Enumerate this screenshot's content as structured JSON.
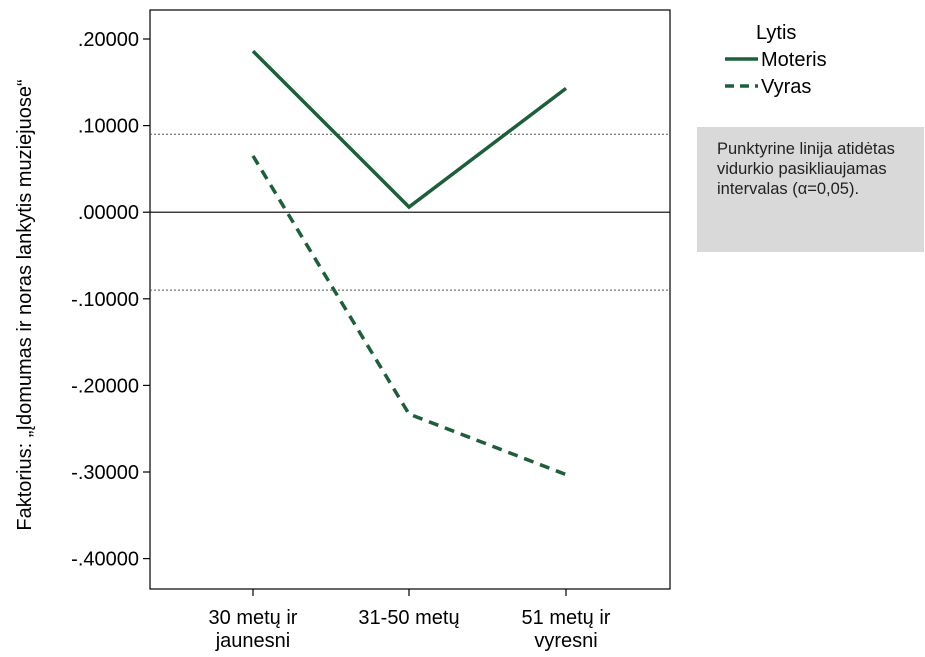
{
  "chart_data": {
    "type": "line",
    "categories": [
      "30 metų ir jaunesni",
      "31-50 metų",
      "51 metų ir vyresni"
    ],
    "category_lines": [
      [
        "30 metų ir",
        "jaunesni"
      ],
      [
        "31-50 metų"
      ],
      [
        "51 metų ir",
        "vyresni"
      ]
    ],
    "ylabel": "Faktorius: „Įdomumas ir noras lankytis muziejuose“",
    "xlabel": "",
    "ylim": [
      -0.45,
      0.23
    ],
    "yticks": [
      0.2,
      0.1,
      0.0,
      -0.1,
      -0.2,
      -0.3,
      -0.4
    ],
    "ytick_labels": [
      ".20000",
      ".10000",
      ".00000",
      "-.10000",
      "-.20000",
      "-.30000",
      "-.40000"
    ],
    "series": [
      {
        "name": "Moteris",
        "values": [
          0.186,
          0.006,
          0.143
        ],
        "style": "solid",
        "color": "#1e5e3a"
      },
      {
        "name": "Vyras",
        "values": [
          0.065,
          -0.233,
          -0.303
        ],
        "style": "dashed",
        "color": "#1e5e3a"
      }
    ],
    "reference_lines": [
      {
        "y": 0.0,
        "style": "solid"
      },
      {
        "y": 0.09,
        "style": "dotted"
      },
      {
        "y": -0.09,
        "style": "dotted"
      }
    ],
    "legend": {
      "title": "Lytis",
      "position": "top-right"
    },
    "annotation": "Punktyrine linija atidėtas vidurkio pasikliaujamas intervalas (α=0,05)."
  }
}
